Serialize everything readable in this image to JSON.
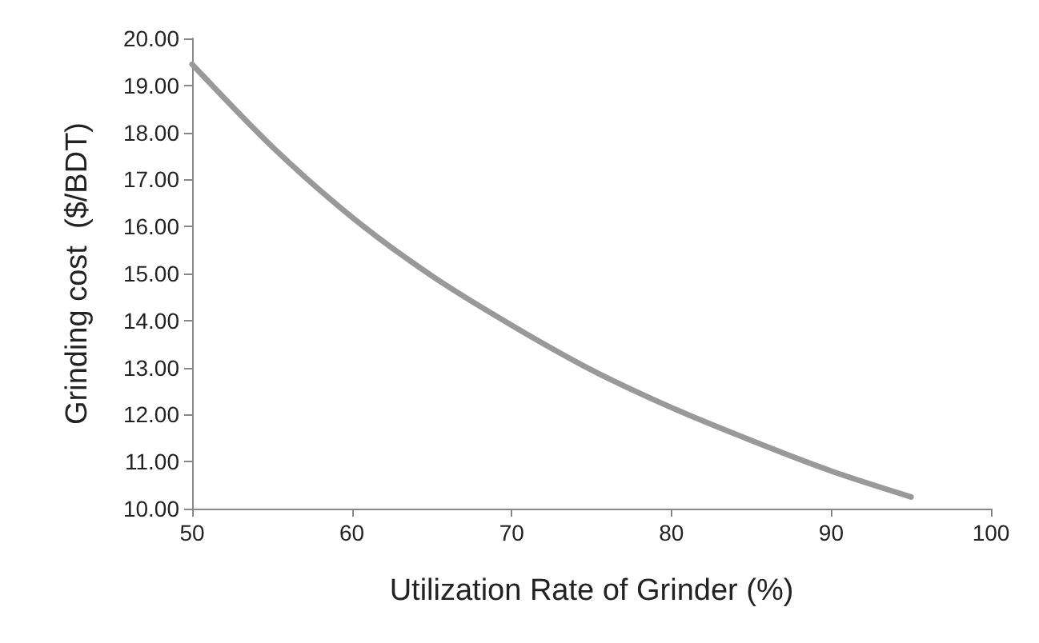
{
  "chart_data": {
    "type": "line",
    "xlabel": "Utilization Rate of Grinder (%)",
    "ylabel": "Grinding cost  ($/BDT)",
    "x": [
      50,
      55,
      60,
      65,
      70,
      75,
      80,
      85,
      90,
      95
    ],
    "series": [
      {
        "color": "#999999",
        "values": [
          19.45,
          17.7,
          16.2,
          14.95,
          13.9,
          12.95,
          12.15,
          11.45,
          10.8,
          10.25
        ]
      }
    ],
    "xlim": [
      50,
      100
    ],
    "xticks": [
      50,
      60,
      70,
      80,
      90,
      100
    ],
    "ylim": [
      10,
      20
    ],
    "yticks": [
      {
        "value": 10,
        "label": "10.00"
      },
      {
        "value": 11,
        "label": "11.00"
      },
      {
        "value": 12,
        "label": "12.00"
      },
      {
        "value": 13,
        "label": "13.00"
      },
      {
        "value": 14,
        "label": "14.00"
      },
      {
        "value": 15,
        "label": "15.00"
      },
      {
        "value": 16,
        "label": "16.00"
      },
      {
        "value": 17,
        "label": "17.00"
      },
      {
        "value": 18,
        "label": "18.00"
      },
      {
        "value": 19,
        "label": "19.00"
      },
      {
        "value": 20,
        "label": "20.00"
      }
    ],
    "grid": false,
    "marker": "none",
    "line_style": "solid"
  }
}
